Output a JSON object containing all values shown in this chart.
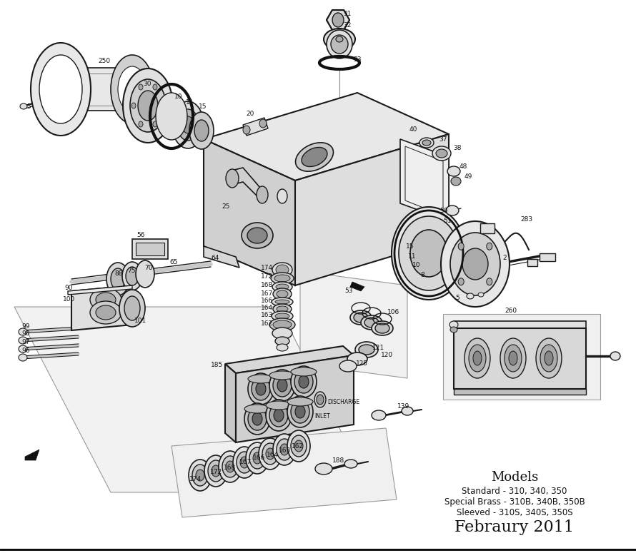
{
  "background_color": "#ffffff",
  "models_title": "Models",
  "models_line1": "Standard - 310, 340, 350",
  "models_line2": "Special Brass - 310B, 340B, 350B",
  "models_line3": "Sleeved - 310S, 340S, 350S",
  "models_date": "Febraury 2011",
  "stroke_color": "#1a1a1a",
  "light_fill": "#f5f5f5",
  "mid_fill": "#e0e0e0",
  "dark_fill": "#aaaaaa"
}
